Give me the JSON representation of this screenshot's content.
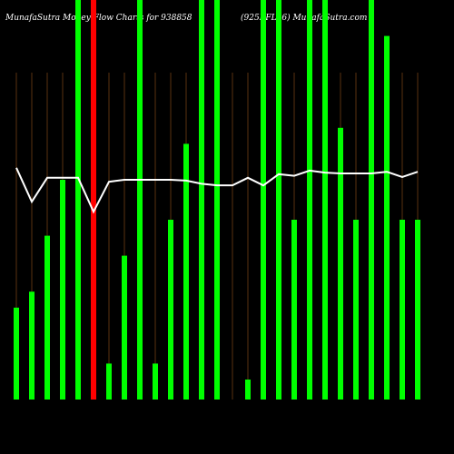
{
  "chart_data": {
    "type": "bar",
    "title": "MunafaSutra  Money Flow  Charts for 938858",
    "subtitle": "(925KFL26) MunafaSutra.com",
    "categories": [
      null,
      null,
      null,
      null,
      null,
      null,
      null,
      null,
      null,
      null,
      null,
      null,
      null,
      null,
      null,
      null,
      null,
      null,
      null,
      null,
      null,
      null,
      null,
      null,
      null,
      null,
      null
    ],
    "values": [
      23,
      27,
      41,
      55,
      100,
      100,
      9,
      36,
      100,
      9,
      45,
      64,
      100,
      100,
      0,
      5,
      100,
      100,
      45,
      100,
      100,
      68,
      45,
      100,
      91,
      45,
      45
    ],
    "colors": [
      "#00ff00",
      "#00ff00",
      "#00ff00",
      "#00ff00",
      "#00ff00",
      "#ff0000",
      "#00ff00",
      "#00ff00",
      "#00ff00",
      "#00ff00",
      "#00ff00",
      "#00ff00",
      "#00ff00",
      "#00ff00",
      "#00ff00",
      "#00ff00",
      "#00ff00",
      "#00ff00",
      "#00ff00",
      "#00ff00",
      "#00ff00",
      "#00ff00",
      "#00ff00",
      "#00ff00",
      "#00ff00",
      "#00ff00",
      "#00ff00"
    ],
    "line": {
      "color": "#ffffff",
      "values": [
        58,
        49.5,
        55.5,
        55.5,
        55.5,
        47,
        54.5,
        55,
        55,
        55,
        55,
        54.8,
        54,
        53.6,
        53.6,
        55.5,
        53.6,
        56.4,
        56,
        57.3,
        56.8,
        56.6,
        56.6,
        56.6,
        57,
        55.7,
        57
      ]
    },
    "ylim": [
      0,
      100
    ]
  }
}
